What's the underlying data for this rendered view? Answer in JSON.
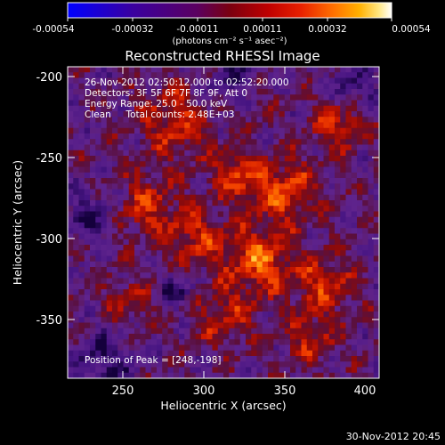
{
  "colorbar": {
    "tick_labels": [
      "-0.00054",
      "-0.00032",
      "-0.00011",
      "0.00011",
      "0.00032",
      "0.00054"
    ],
    "unit_label": "(photons cm⁻² s⁻¹ asec⁻²)",
    "colors": [
      "#0000ff",
      "#3a00a0",
      "#5b0060",
      "#7a0010",
      "#b00000",
      "#e02000",
      "#ff6a00",
      "#ffb000",
      "#ffe680",
      "#ffffff"
    ]
  },
  "title": "Reconstructed RHESSI Image",
  "annotations": {
    "line1": "26-Nov-2012 02:50:12.000 to 02:52:20.000",
    "line2": "Detectors: 3F 5F 6F 7F 8F 9F, Att 0",
    "line3": "Energy Range: 25.0 - 50.0 keV",
    "line4": "Clean     Total counts: 2.48E+03",
    "peak": "Position of Peak = [248,-198]"
  },
  "axes": {
    "xlabel": "Heliocentric X (arcsec)",
    "ylabel": "Heliocentric Y (arcsec)",
    "xticks": [
      "250",
      "300",
      "350",
      "400"
    ],
    "yticks": [
      "-200",
      "-250",
      "-300",
      "-350"
    ],
    "x_range": [
      216,
      408
    ],
    "y_range": [
      -386,
      -194
    ]
  },
  "footer": {
    "timestamp": "30-Nov-2012 20:45"
  }
}
